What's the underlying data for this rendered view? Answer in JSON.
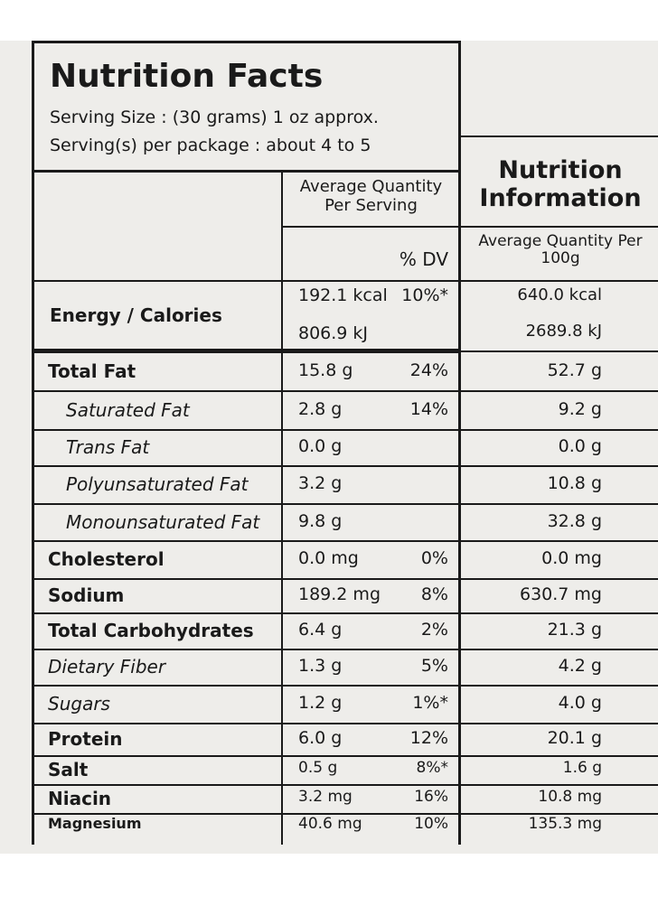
{
  "header": {
    "title": "Nutrition Facts",
    "serving_size": "Serving Size : (30 grams) 1 oz approx.",
    "servings_per_package": "Serving(s) per package : about 4 to 5"
  },
  "columns": {
    "per_serving": "Average Quantity Per Serving",
    "dv": "% DV",
    "info_title": "Nutrition Information",
    "per_100g": "Average Quantity Per 100g"
  },
  "energy": {
    "name": "Energy / Calories",
    "kcal": "192.1 kcal",
    "dv": "10%*",
    "kj": "806.9 kJ",
    "kcal_100g": "640.0 kcal",
    "kj_100g": "2689.8 kJ"
  },
  "rows": [
    {
      "name": "Total Fat",
      "per_serving": "15.8 g",
      "dv": "24%",
      "per_100g": "52.7 g"
    },
    {
      "name": "Saturated Fat",
      "per_serving": "2.8 g",
      "dv": "14%",
      "per_100g": "9.2 g"
    },
    {
      "name": "Trans Fat",
      "per_serving": "0.0 g",
      "per_100g": "0.0 g"
    },
    {
      "name": "Polyunsaturated Fat",
      "per_serving": "3.2 g",
      "per_100g": "10.8 g"
    },
    {
      "name": "Monounsaturated Fat",
      "per_serving": "9.8 g",
      "per_100g": "32.8 g"
    },
    {
      "name": "Cholesterol",
      "per_serving": "0.0 mg",
      "dv": "0%",
      "per_100g": "0.0 mg"
    },
    {
      "name": "Sodium",
      "per_serving": "189.2 mg",
      "dv": "8%",
      "per_100g": "630.7 mg"
    },
    {
      "name": "Total Carbohydrates",
      "per_serving": "6.4 g",
      "dv": "2%",
      "per_100g": "21.3 g"
    },
    {
      "name": "Dietary Fiber",
      "per_serving": "1.3 g",
      "dv": "5%",
      "per_100g": "4.2 g"
    },
    {
      "name": "Sugars",
      "per_serving": "1.2 g",
      "dv": "1%*",
      "per_100g": "4.0 g"
    },
    {
      "name": "Protein",
      "per_serving": "6.0 g",
      "dv": "12%",
      "per_100g": "20.1 g"
    },
    {
      "name": "Salt",
      "per_serving": "0.5 g",
      "dv": "8%*",
      "per_100g": "1.6 g"
    },
    {
      "name": "Niacin",
      "per_serving": "3.2 mg",
      "dv": "16%",
      "per_100g": "10.8 mg"
    },
    {
      "name": "Magnesium",
      "per_serving": "40.6 mg",
      "dv": "10%",
      "per_100g": "135.3 mg"
    }
  ]
}
